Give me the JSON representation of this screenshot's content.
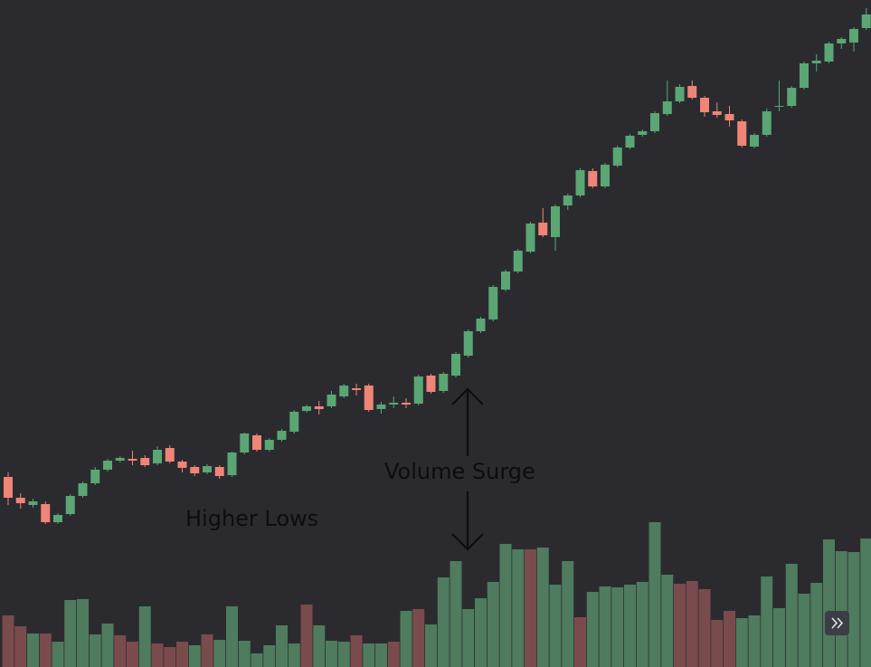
{
  "chart_data": {
    "type": "candlestick",
    "annotations": [
      "Higher Lows",
      "Volume Surge"
    ],
    "ylim": [
      0,
      737
    ],
    "y2lim": [
      0,
      737
    ],
    "up_color": "#5aa674",
    "down_color": "#ee8577",
    "open": [
      210,
      187,
      179,
      180,
      160,
      169,
      189,
      203,
      218,
      228,
      230,
      231,
      225,
      242,
      227,
      221,
      215,
      221,
      212,
      237,
      256,
      240,
      251,
      260,
      283,
      288,
      288,
      299,
      308,
      311,
      285,
      290,
      292,
      291,
      322,
      305,
      322,
      344,
      371,
      384,
      417,
      437,
      459,
      491,
      475,
      510,
      521,
      548,
      531,
      554,
      574,
      588,
      592,
      611,
      625,
      642,
      629,
      614,
      611,
      603,
      575,
      588,
      619,
      620,
      640,
      667,
      669,
      689,
      690,
      706
    ],
    "high": [
      215,
      192,
      186,
      183,
      170,
      191,
      205,
      221,
      230,
      233,
      239,
      234,
      244,
      245,
      229,
      223,
      224,
      223,
      238,
      259,
      258,
      253,
      263,
      284,
      290,
      294,
      305,
      313,
      313,
      313,
      293,
      299,
      297,
      323,
      324,
      326,
      348,
      373,
      387,
      422,
      439,
      462,
      492,
      507,
      511,
      523,
      551,
      551,
      557,
      576,
      589,
      594,
      614,
      648,
      644,
      648,
      631,
      624,
      620,
      605,
      590,
      617,
      648,
      642,
      669,
      677,
      691,
      696,
      707,
      728
    ],
    "low": [
      179,
      175,
      176,
      158,
      158,
      167,
      187,
      201,
      216,
      226,
      223,
      221,
      223,
      225,
      215,
      211,
      213,
      208,
      210,
      235,
      238,
      238,
      249,
      258,
      281,
      279,
      286,
      297,
      300,
      282,
      280,
      286,
      286,
      289,
      302,
      303,
      320,
      342,
      369,
      382,
      415,
      435,
      457,
      475,
      460,
      505,
      519,
      529,
      529,
      552,
      572,
      586,
      590,
      609,
      623,
      627,
      608,
      607,
      597,
      574,
      573,
      586,
      614,
      618,
      638,
      658,
      667,
      683,
      680,
      704
    ],
    "close": [
      187,
      181,
      183,
      160,
      168,
      189,
      203,
      218,
      228,
      231,
      228,
      223,
      240,
      227,
      220,
      214,
      222,
      211,
      237,
      258,
      240,
      251,
      261,
      282,
      288,
      285,
      301,
      311,
      306,
      284,
      290,
      292,
      290,
      321,
      304,
      324,
      346,
      371,
      385,
      420,
      437,
      460,
      490,
      477,
      509,
      521,
      549,
      531,
      555,
      574,
      587,
      592,
      612,
      625,
      641,
      629,
      613,
      610,
      604,
      576,
      588,
      614,
      620,
      640,
      667,
      670,
      689,
      694,
      705,
      721
    ],
    "volume": {
      "values": [
        57,
        45,
        37,
        37,
        28,
        74,
        75,
        36,
        48,
        35,
        28,
        67,
        26,
        22,
        28,
        24,
        36,
        30,
        67,
        29,
        15,
        24,
        46,
        26,
        69,
        46,
        29,
        28,
        35,
        26,
        26,
        28,
        62,
        64,
        47,
        99,
        117,
        64,
        76,
        94,
        136,
        130,
        130,
        132,
        91,
        117,
        55,
        83,
        89,
        88,
        91,
        94,
        160,
        102,
        92,
        95,
        86,
        52,
        62,
        54,
        57,
        100,
        65,
        114,
        81,
        93,
        141,
        128,
        127,
        142
      ],
      "colors": [
        "#7a4b4d",
        "#7a4b4d",
        "#4f7b5e",
        "#7a4b4d",
        "#4f7b5e",
        "#4f7b5e",
        "#4f7b5e",
        "#4f7b5e",
        "#4f7b5e",
        "#7a4b4d",
        "#7a4b4d",
        "#4f7b5e",
        "#7a4b4d",
        "#7a4b4d",
        "#7a4b4d",
        "#4f7b5e",
        "#7a4b4d",
        "#4f7b5e",
        "#4f7b5e",
        "#4f7b5e",
        "#4f7b5e",
        "#4f7b5e",
        "#4f7b5e",
        "#4f7b5e",
        "#7a4b4d",
        "#4f7b5e",
        "#4f7b5e",
        "#4f7b5e",
        "#7a4b4d",
        "#4f7b5e",
        "#4f7b5e",
        "#7a4b4d",
        "#4f7b5e",
        "#7a4b4d",
        "#4f7b5e",
        "#4f7b5e",
        "#4f7b5e",
        "#4f7b5e",
        "#4f7b5e",
        "#4f7b5e",
        "#4f7b5e",
        "#4f7b5e",
        "#7a4b4d",
        "#4f7b5e",
        "#4f7b5e",
        "#4f7b5e",
        "#7a4b4d",
        "#4f7b5e",
        "#4f7b5e",
        "#4f7b5e",
        "#4f7b5e",
        "#4f7b5e",
        "#4f7b5e",
        "#4f7b5e",
        "#7a4b4d",
        "#7a4b4d",
        "#7a4b4d",
        "#7a4b4d",
        "#7a4b4d",
        "#4f7b5e",
        "#4f7b5e",
        "#4f7b5e",
        "#4f7b5e",
        "#4f7b5e",
        "#4f7b5e",
        "#4f7b5e",
        "#4f7b5e",
        "#4f7b5e",
        "#4f7b5e",
        "#4f7b5e"
      ]
    }
  }
}
